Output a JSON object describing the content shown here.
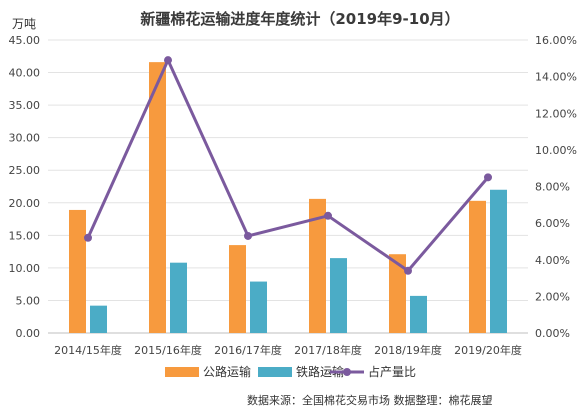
{
  "chart_data": {
    "type": "bar",
    "title": "新疆棉花运输进度年度统计（2019年9-10月）",
    "y_unit_label": "万吨",
    "categories": [
      "2014/15年度",
      "2015/16年度",
      "2016/17年度",
      "2017/18年度",
      "2018/19年度",
      "2019/20年度"
    ],
    "left_axis": {
      "range": [
        0,
        45
      ],
      "ticks": [
        "0.00",
        "5.00",
        "10.00",
        "15.00",
        "20.00",
        "25.00",
        "30.00",
        "35.00",
        "40.00",
        "45.00"
      ]
    },
    "right_axis": {
      "range": [
        0,
        16
      ],
      "ticks": [
        "0.00%",
        "2.00%",
        "4.00%",
        "6.00%",
        "8.00%",
        "10.00%",
        "12.00%",
        "14.00%",
        "16.00%"
      ]
    },
    "series": [
      {
        "name": "公路运输",
        "type": "bar",
        "axis": "left",
        "color": "#f79a3e",
        "values": [
          18.9,
          41.6,
          13.5,
          20.6,
          12.1,
          20.3
        ]
      },
      {
        "name": "铁路运输",
        "type": "bar",
        "axis": "left",
        "color": "#4bacc6",
        "values": [
          4.2,
          10.8,
          7.9,
          11.5,
          5.7,
          22.0
        ]
      },
      {
        "name": "占产量比",
        "type": "line",
        "axis": "right",
        "color": "#7b5a9e",
        "values": [
          5.2,
          14.9,
          5.3,
          6.4,
          3.4,
          8.5
        ]
      }
    ],
    "grid": true,
    "legend_position": "bottom"
  },
  "footer": {
    "source": "数据来源：全国棉花交易市场   数据整理：棉花展望"
  }
}
